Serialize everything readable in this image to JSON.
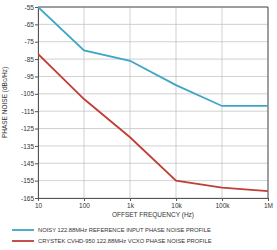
{
  "chart_data": {
    "type": "line",
    "x_label": "OFFSET FREQUENCY (Hz)",
    "y_label": "PHASE NOISE (dBc/Hz)",
    "x": [
      10,
      100,
      1000,
      10000,
      100000,
      1000000
    ],
    "series": [
      {
        "name": "NOISY 122.88MHz REFERENCE INPUT PHASE NOISE PROFILE",
        "color": "#3ba6c6",
        "values": [
          -55,
          -80,
          -86,
          -100,
          -112,
          -112
        ]
      },
      {
        "name": "CRYSTEK CVHD-950 122.88MHz VCXO PHASE NOISE PROFILE",
        "color": "#bf3f36",
        "values": [
          -82,
          -108,
          -130,
          -155,
          -159,
          -161
        ]
      }
    ],
    "xlim": [
      10,
      1000000
    ],
    "xticks": [
      10,
      100,
      {
        "value": 1000,
        "label": "1k"
      },
      {
        "value": 10000,
        "label": "10k"
      },
      {
        "value": 100000,
        "label": "100k"
      },
      {
        "value": 1000000,
        "label": "1M"
      }
    ],
    "ylim": [
      -165,
      -55
    ],
    "yticks": [
      -165,
      -155,
      -145,
      -135,
      -125,
      -115,
      -105,
      -95,
      -85,
      -75,
      -65,
      -55
    ],
    "log": "x",
    "grid": true,
    "legend": "bottom"
  }
}
